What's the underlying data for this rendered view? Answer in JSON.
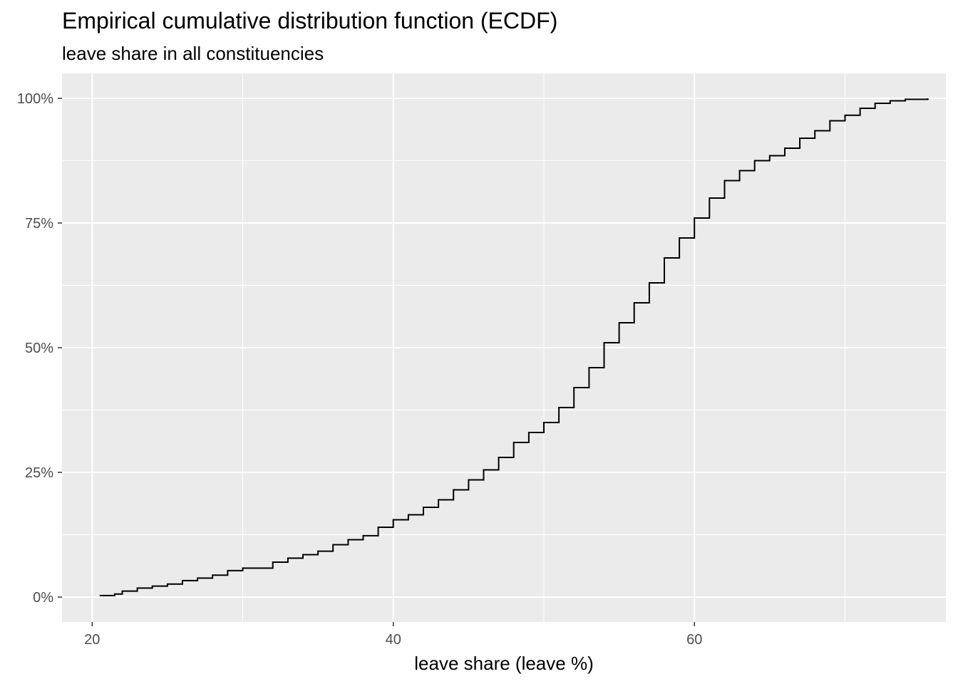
{
  "chart_data": {
    "type": "line",
    "step": true,
    "title": "Empirical cumulative distribution function (ECDF)",
    "subtitle": "leave share in all constituencies",
    "xlabel": "leave share (leave %)",
    "ylabel": "",
    "xlim": [
      18,
      76.7
    ],
    "ylim": [
      -0.05,
      1.05
    ],
    "x_ticks": [
      20,
      40,
      60
    ],
    "x_tick_labels": [
      "20",
      "40",
      "60"
    ],
    "x_minor_ticks": [
      30,
      50,
      70
    ],
    "y_ticks": [
      0,
      0.25,
      0.5,
      0.75,
      1.0
    ],
    "y_tick_labels": [
      "0%",
      "25%",
      "50%",
      "75%",
      "100%"
    ],
    "y_minor_ticks": [
      0.125,
      0.375,
      0.625,
      0.875
    ],
    "grid": true,
    "legend": "none",
    "colors": {
      "panel": "#EBEBEB",
      "grid": "#FFFFFF",
      "line": "#000000",
      "tick_text": "#4D4D4D"
    },
    "series": [
      {
        "x": [
          20.5,
          21.5,
          22.0,
          23.0,
          24.0,
          25.0,
          26.0,
          27.0,
          28.0,
          29.0,
          30.0,
          31.0,
          32.0,
          33.0,
          34.0,
          35.0,
          36.0,
          37.0,
          38.0,
          39.0,
          40.0,
          41.0,
          42.0,
          43.0,
          44.0,
          45.0,
          46.0,
          47.0,
          48.0,
          49.0,
          50.0,
          51.0,
          52.0,
          53.0,
          54.0,
          55.0,
          56.0,
          57.0,
          58.0,
          59.0,
          60.0,
          61.0,
          62.0,
          63.0,
          64.0,
          65.0,
          66.0,
          67.0,
          68.0,
          69.0,
          70.0,
          71.0,
          72.0,
          73.0,
          74.0,
          75.5
        ],
        "y": [
          0.003,
          0.006,
          0.012,
          0.018,
          0.022,
          0.026,
          0.033,
          0.038,
          0.044,
          0.053,
          0.058,
          0.058,
          0.07,
          0.078,
          0.085,
          0.092,
          0.105,
          0.115,
          0.123,
          0.14,
          0.155,
          0.165,
          0.18,
          0.195,
          0.215,
          0.235,
          0.255,
          0.28,
          0.31,
          0.33,
          0.35,
          0.38,
          0.42,
          0.46,
          0.51,
          0.55,
          0.59,
          0.63,
          0.68,
          0.72,
          0.76,
          0.8,
          0.835,
          0.855,
          0.875,
          0.885,
          0.9,
          0.92,
          0.935,
          0.955,
          0.966,
          0.98,
          0.99,
          0.995,
          0.998,
          1.0
        ]
      }
    ]
  }
}
